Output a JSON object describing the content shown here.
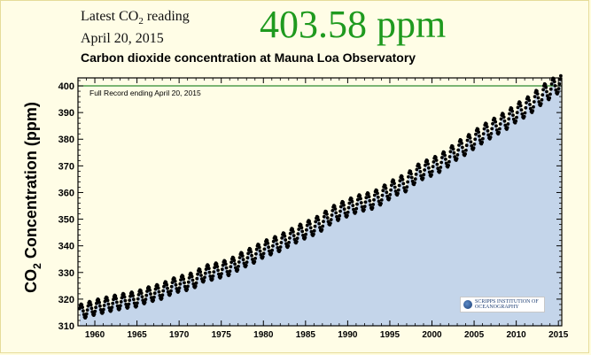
{
  "header": {
    "latest_label": "Latest CO",
    "latest_sub": "2",
    "latest_suffix": " reading",
    "latest_date": "April 20, 2015",
    "reading": "403.58 ppm",
    "reading_color": "#1f9a1f"
  },
  "logo": {
    "line1": "SCRIPPS INSTITUTION OF",
    "line2": "OCEANOGRAPHY"
  },
  "chart_data": {
    "type": "scatter",
    "title": "Carbon dioxide concentration at Mauna Loa Observatory",
    "ylabel_prefix": "CO",
    "ylabel_sub": "2",
    "ylabel_suffix": " Concentration (ppm)",
    "xlabel": "",
    "xlim": [
      1958,
      2015.4
    ],
    "ylim": [
      310,
      403
    ],
    "x_ticks": [
      1960,
      1965,
      1970,
      1975,
      1980,
      1985,
      1990,
      1995,
      2000,
      2005,
      2010,
      2015
    ],
    "y_ticks": [
      310,
      320,
      330,
      340,
      350,
      360,
      370,
      380,
      390,
      400
    ],
    "grid": false,
    "fill_color": "#c4d5ea",
    "point_color": "#000000",
    "reference_line": {
      "y": 400,
      "label": "Full Record ending April 20, 2015",
      "color": "#2f8a2f"
    },
    "series": [
      {
        "x": [
          1958.0,
          1959.0,
          1960.0,
          1961.0,
          1962.0,
          1963.0,
          1964.0,
          1965.0,
          1966.0,
          1967.0,
          1968.0,
          1969.0,
          1970.0,
          1971.0,
          1972.0,
          1973.0,
          1974.0,
          1975.0,
          1976.0,
          1977.0,
          1978.0,
          1979.0,
          1980.0,
          1981.0,
          1982.0,
          1983.0,
          1984.0,
          1985.0,
          1986.0,
          1987.0,
          1988.0,
          1989.0,
          1990.0,
          1991.0,
          1992.0,
          1993.0,
          1994.0,
          1995.0,
          1996.0,
          1997.0,
          1998.0,
          1999.0,
          2000.0,
          2001.0,
          2002.0,
          2003.0,
          2004.0,
          2005.0,
          2006.0,
          2007.0,
          2008.0,
          2009.0,
          2010.0,
          2011.0,
          2012.0,
          2013.0,
          2014.0,
          2015.0
        ],
        "y": [
          315.0,
          315.9,
          316.9,
          317.6,
          318.4,
          319.0,
          319.6,
          320.0,
          321.4,
          322.2,
          323.0,
          324.6,
          325.7,
          326.3,
          327.5,
          329.7,
          330.2,
          331.1,
          332.0,
          333.8,
          335.4,
          336.8,
          338.7,
          339.9,
          341.1,
          342.8,
          344.4,
          345.9,
          347.2,
          348.9,
          351.4,
          352.9,
          354.2,
          355.6,
          356.4,
          357.1,
          358.8,
          360.8,
          362.6,
          363.7,
          366.7,
          368.4,
          369.6,
          371.1,
          373.2,
          375.8,
          377.5,
          379.8,
          381.9,
          383.8,
          385.6,
          387.4,
          389.9,
          391.6,
          393.8,
          396.5,
          398.6,
          400.8
        ]
      }
    ]
  }
}
